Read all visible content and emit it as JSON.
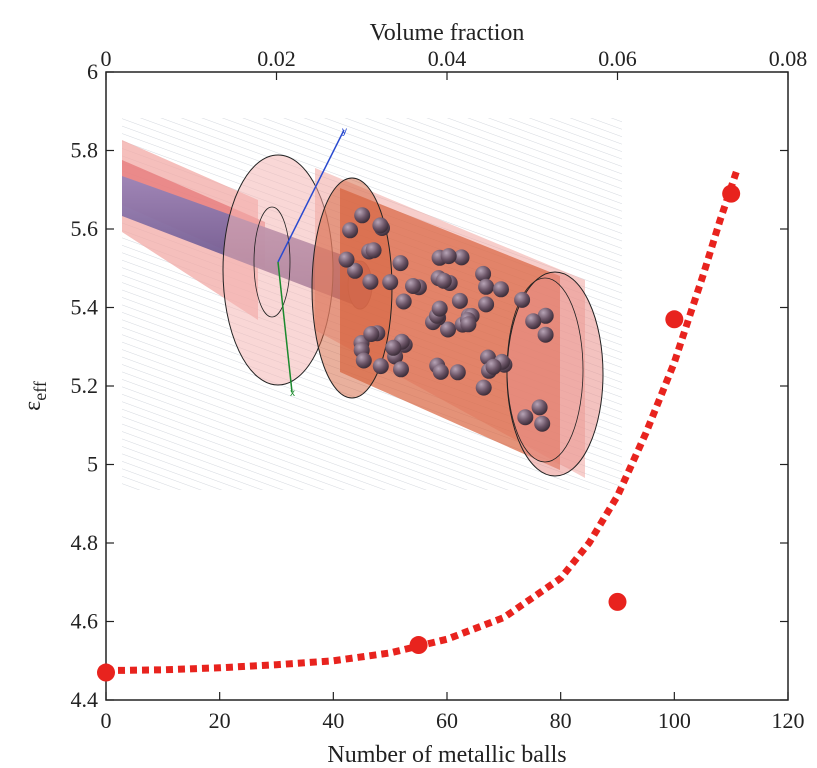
{
  "chart_data": {
    "type": "scatter",
    "title": "",
    "xlabel": "Number of metallic balls",
    "x2label": "Volume fraction",
    "ylabel": "ε",
    "ylabel_sub": "eff",
    "xlim": [
      0,
      120
    ],
    "x2lim": [
      0,
      0.08
    ],
    "ylim": [
      4.4,
      6.0
    ],
    "x_ticks": [
      "0",
      "20",
      "40",
      "60",
      "80",
      "100",
      "120"
    ],
    "x2_ticks": [
      "0",
      "0.02",
      "0.04",
      "0.06",
      "0.08"
    ],
    "y_ticks": [
      "4.4",
      "4.6",
      "4.8",
      "5",
      "5.2",
      "5.4",
      "5.6",
      "5.8",
      "6"
    ],
    "grid": false,
    "legend": "none",
    "series": [
      {
        "kind": "points",
        "color": "#e8231e",
        "x": [
          0,
          55,
          90,
          100,
          110
        ],
        "y": [
          4.47,
          4.54,
          4.65,
          5.37,
          5.69
        ]
      },
      {
        "kind": "dotted-fit",
        "color": "#e8231e",
        "x": [
          0,
          10,
          20,
          30,
          40,
          50,
          60,
          70,
          80,
          85,
          90,
          95,
          100,
          105,
          108,
          111
        ],
        "y": [
          4.475,
          4.477,
          4.482,
          4.49,
          4.5,
          4.52,
          4.555,
          4.61,
          4.71,
          4.8,
          4.92,
          5.08,
          5.26,
          5.48,
          5.62,
          5.75
        ]
      }
    ],
    "inset": "3D model of coaxial line with cylinder containing metallic balls"
  }
}
